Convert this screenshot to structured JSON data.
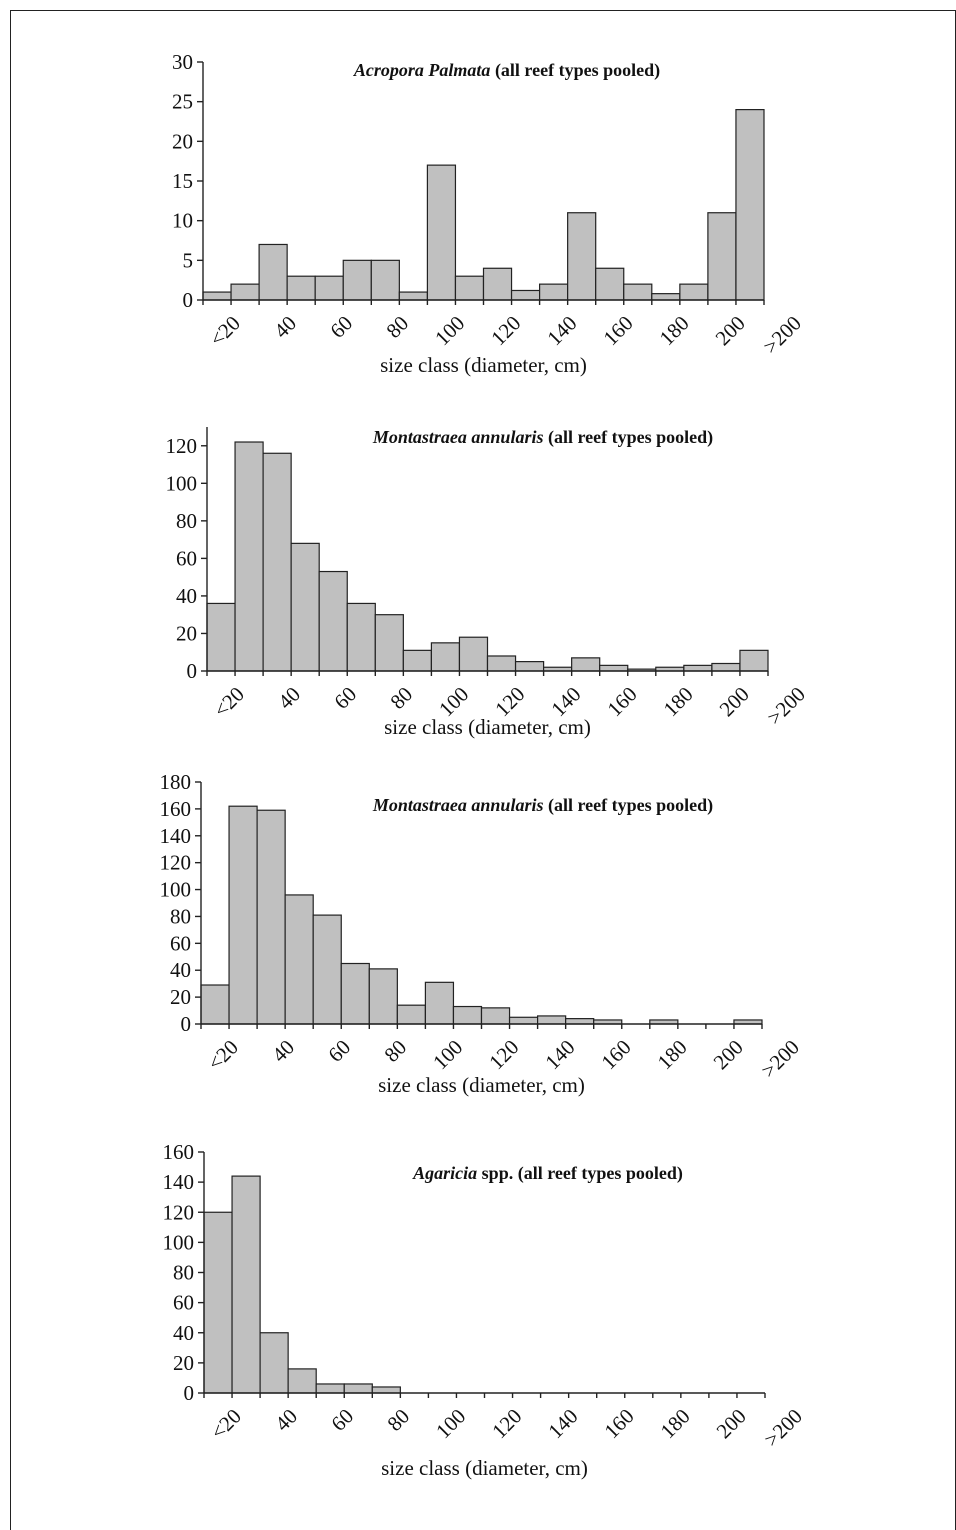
{
  "chart_data": [
    {
      "type": "bar",
      "title_italic": "Acropora Palmata",
      "title_rest": " (all reef types pooled)",
      "xlabel": "size class (diameter, cm)",
      "ylabel": "",
      "ylim": [
        0,
        30
      ],
      "yticks": [
        0,
        5,
        10,
        15,
        20,
        25,
        30
      ],
      "xtick_labels": [
        "<20",
        "40",
        "60",
        "80",
        "100",
        "120",
        "140",
        "160",
        "180",
        "200",
        ">200"
      ],
      "values": [
        1,
        2,
        7,
        3,
        3,
        5,
        5,
        1,
        17,
        3,
        4,
        1.2,
        2,
        11,
        4,
        2,
        0.8,
        2,
        11,
        24
      ],
      "colors": {
        "bar": "#c0c0c0",
        "edge": "#222222"
      }
    },
    {
      "type": "bar",
      "title_italic": "Montastraea annularis",
      "title_rest": " (all reef types pooled)",
      "xlabel": "size class (diameter, cm)",
      "ylabel": "",
      "ylim": [
        0,
        130
      ],
      "yticks": [
        0,
        20,
        40,
        60,
        80,
        100,
        120
      ],
      "xtick_labels": [
        "<20",
        "40",
        "60",
        "80",
        "100",
        "120",
        "140",
        "160",
        "180",
        "200",
        ">200"
      ],
      "values": [
        36,
        122,
        116,
        68,
        53,
        36,
        30,
        11,
        15,
        18,
        8,
        5,
        2,
        7,
        3,
        1,
        2,
        3,
        4,
        11
      ],
      "colors": {
        "bar": "#c0c0c0",
        "edge": "#222222"
      }
    },
    {
      "type": "bar",
      "title_italic": "Montastraea annularis",
      "title_rest": " (all reef types pooled)",
      "xlabel": "size class (diameter, cm)",
      "ylabel": "",
      "ylim": [
        0,
        180
      ],
      "yticks": [
        0,
        20,
        40,
        60,
        80,
        100,
        120,
        140,
        160,
        180
      ],
      "xtick_labels": [
        "<20",
        "40",
        "60",
        "80",
        "100",
        "120",
        "140",
        "160",
        "180",
        "200",
        ">200"
      ],
      "values": [
        29,
        162,
        159,
        96,
        81,
        45,
        41,
        14,
        31,
        13,
        12,
        5,
        6,
        4,
        3,
        0,
        3,
        0,
        0,
        3
      ],
      "colors": {
        "bar": "#c0c0c0",
        "edge": "#222222"
      }
    },
    {
      "type": "bar",
      "title_italic": "Agaricia",
      "title_rest": " spp. (all reef types pooled)",
      "xlabel": "size class (diameter, cm)",
      "ylabel": "",
      "ylim": [
        0,
        160
      ],
      "yticks": [
        0,
        20,
        40,
        60,
        80,
        100,
        120,
        140,
        160
      ],
      "xtick_labels": [
        "<20",
        "40",
        "60",
        "80",
        "100",
        "120",
        "140",
        "160",
        "180",
        "200",
        ">200"
      ],
      "values": [
        120,
        144,
        40,
        16,
        6,
        6,
        4,
        0,
        0,
        0,
        0,
        0,
        0,
        0,
        0,
        0,
        0,
        0,
        0,
        0
      ],
      "colors": {
        "bar": "#c0c0c0",
        "edge": "#222222"
      }
    }
  ]
}
